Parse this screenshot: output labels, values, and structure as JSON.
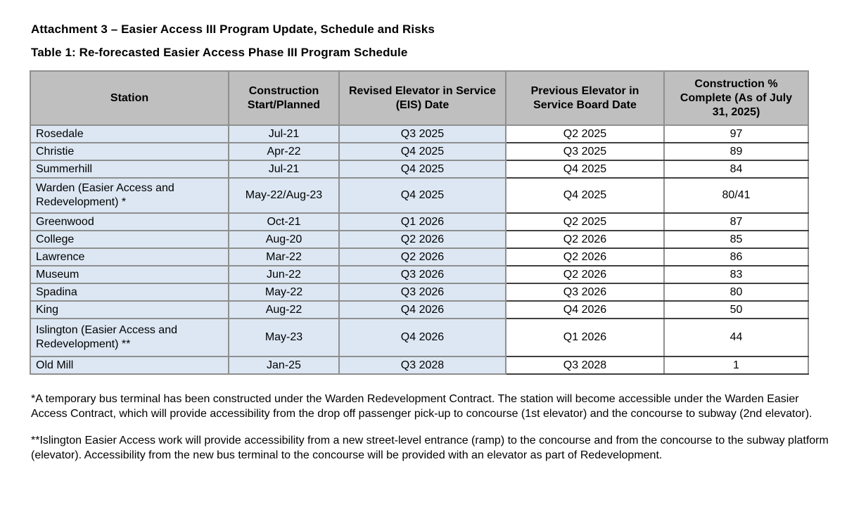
{
  "page": {
    "title": "Attachment 3 – Easier Access III Program Update, Schedule and Risks",
    "table_title": "Table 1: Re-forecasted Easier Access Phase III Program Schedule"
  },
  "colors": {
    "header_bg": "#BFBFBF",
    "highlight_bg": "#DCE7F3",
    "border_gray": "#8F8F8F",
    "border_dark": "#404040"
  },
  "table": {
    "columns": [
      "Station",
      "Construction Start/Planned",
      "Revised Elevator in Service (EIS) Date",
      "Previous Elevator in Service Board Date",
      "Construction % Complete (As of July 31, 2025)"
    ],
    "rows": [
      {
        "station": "Rosedale",
        "start": "Jul-21",
        "revised": "Q3 2025",
        "previous": "Q2 2025",
        "pct": "97"
      },
      {
        "station": "Christie",
        "start": "Apr-22",
        "revised": "Q4 2025",
        "previous": "Q3 2025",
        "pct": "89"
      },
      {
        "station": "Summerhill",
        "start": "Jul-21",
        "revised": "Q4 2025",
        "previous": "Q4 2025",
        "pct": "84"
      },
      {
        "station": "Warden (Easier Access and Redevelopment) *",
        "start": "May-22/Aug-23",
        "revised": "Q4 2025",
        "previous": "Q4 2025",
        "pct": "80/41"
      },
      {
        "station": "Greenwood",
        "start": "Oct-21",
        "revised": "Q1 2026",
        "previous": "Q2 2025",
        "pct": "87"
      },
      {
        "station": "College",
        "start": "Aug-20",
        "revised": "Q2 2026",
        "previous": "Q2 2026",
        "pct": "85"
      },
      {
        "station": "Lawrence",
        "start": "Mar-22",
        "revised": "Q2 2026",
        "previous": "Q2 2026",
        "pct": "86"
      },
      {
        "station": "Museum",
        "start": "Jun-22",
        "revised": "Q3 2026",
        "previous": "Q2 2026",
        "pct": "83"
      },
      {
        "station": "Spadina",
        "start": "May-22",
        "revised": "Q3 2026",
        "previous": "Q3 2026",
        "pct": "80"
      },
      {
        "station": "King",
        "start": "Aug-22",
        "revised": "Q4 2026",
        "previous": "Q4 2026",
        "pct": "50"
      },
      {
        "station": "Islington (Easier Access and Redevelopment) **",
        "start": "May-23",
        "revised": "Q4 2026",
        "previous": "Q1 2026",
        "pct": "44"
      },
      {
        "station": "Old Mill",
        "start": "Jan-25",
        "revised": "Q3 2028",
        "previous": "Q3 2028",
        "pct": "1"
      }
    ]
  },
  "footnotes": [
    "*A temporary bus terminal has been constructed under the Warden Redevelopment Contract. The station will become accessible under the Warden Easier Access Contract, which will provide accessibility from the drop off passenger pick-up to concourse (1st elevator) and the concourse to subway (2nd elevator).",
    "**Islington Easier Access work will provide accessibility from a new street-level entrance (ramp) to the concourse and from the concourse to the subway platform (elevator). Accessibility from the new bus terminal to the concourse will be provided with an elevator as part of Redevelopment."
  ]
}
